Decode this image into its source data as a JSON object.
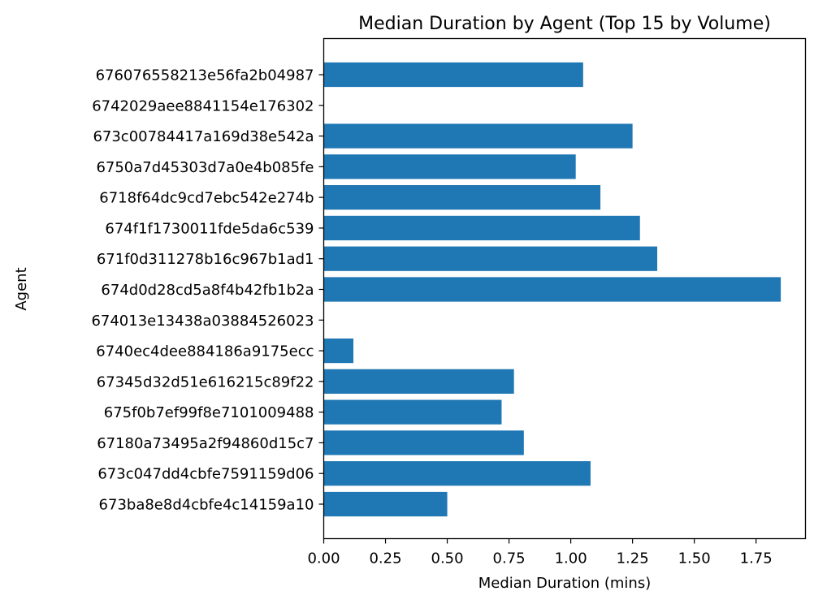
{
  "chart_data": {
    "type": "bar",
    "orientation": "horizontal",
    "title": "Median Duration by Agent (Top 15 by Volume)",
    "xlabel": "Median Duration (mins)",
    "ylabel": "Agent",
    "xlim": [
      0,
      1.95
    ],
    "xticks": [
      "0.00",
      "0.25",
      "0.50",
      "0.75",
      "1.00",
      "1.25",
      "1.50",
      "1.75"
    ],
    "grid": false,
    "bar_color": "#1f77b4",
    "categories": [
      "676076558213e56fa2b04987",
      "6742029aee8841154e176302",
      "673c00784417a169d38e542a",
      "6750a7d45303d7a0e4b085fe",
      "6718f64dc9cd7ebc542e274b",
      "674f1f1730011fde5da6c539",
      "671f0d311278b16c967b1ad1",
      "674d0d28cd5a8f4b42fb1b2a",
      "674013e13438a03884526023",
      "6740ec4dee884186a9175ecc",
      "67345d32d51e616215c89f22",
      "675f0b7ef99f8e7101009488",
      "67180a73495a2f94860d15c7",
      "673c047dd4cbfe7591159d06",
      "673ba8e8d4cbfe4c14159a10"
    ],
    "values": [
      1.05,
      0.0,
      1.25,
      1.02,
      1.12,
      1.28,
      1.35,
      1.85,
      0.0,
      0.12,
      0.77,
      0.72,
      0.81,
      1.08,
      0.5
    ]
  }
}
